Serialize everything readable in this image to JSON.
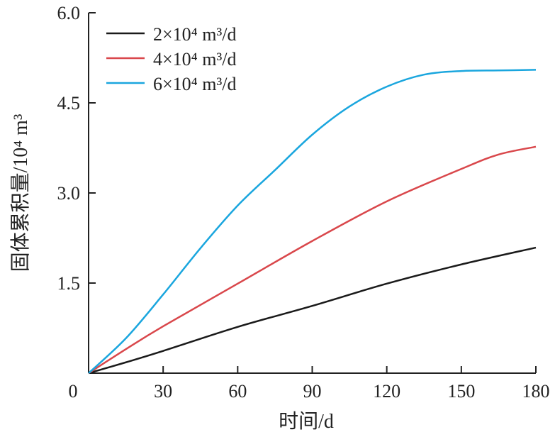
{
  "chart_data": {
    "type": "line",
    "title": "",
    "xlabel": "时间/d",
    "ylabel": "固体累积量/10⁴ m³",
    "xlim": [
      0,
      180
    ],
    "ylim": [
      0,
      6.0
    ],
    "xticks": [
      "0",
      "30",
      "60",
      "90",
      "120",
      "150",
      "180"
    ],
    "yticks": [
      "1.5",
      "3.0",
      "4.5",
      "6.0"
    ],
    "xtick_values": [
      0,
      30,
      60,
      90,
      120,
      150,
      180
    ],
    "ytick_values": [
      1.5,
      3.0,
      4.5,
      6.0
    ],
    "legend_position": "top-left",
    "grid": false,
    "series": [
      {
        "name": "2×10⁴ m³/d",
        "color": "#1a1a1a",
        "x": [
          0,
          15,
          30,
          60,
          90,
          120,
          150,
          180
        ],
        "y": [
          0,
          0.18,
          0.37,
          0.77,
          1.12,
          1.49,
          1.81,
          2.09
        ]
      },
      {
        "name": "4×10⁴ m³/d",
        "color": "#d9474b",
        "x": [
          0,
          15,
          30,
          60,
          90,
          120,
          150,
          165,
          180
        ],
        "y": [
          0,
          0.4,
          0.78,
          1.49,
          2.2,
          2.86,
          3.4,
          3.64,
          3.77
        ]
      },
      {
        "name": "6×10⁴ m³/d",
        "color": "#1aa6de",
        "x": [
          0,
          15,
          30,
          45,
          60,
          75,
          90,
          105,
          120,
          135,
          150,
          165,
          180
        ],
        "y": [
          0,
          0.58,
          1.31,
          2.08,
          2.79,
          3.38,
          3.97,
          4.44,
          4.77,
          4.97,
          5.03,
          5.04,
          5.05
        ]
      }
    ]
  }
}
